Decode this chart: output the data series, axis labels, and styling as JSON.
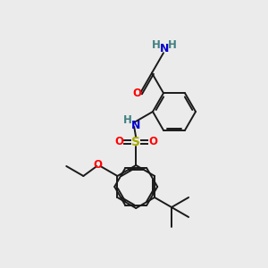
{
  "bg_color": "#ebebeb",
  "bond_color": "#1a1a1a",
  "colors": {
    "N": "#0000cc",
    "O": "#ff0000",
    "S": "#aaaa00",
    "H": "#408080",
    "C": "#1a1a1a"
  },
  "figsize": [
    3.0,
    3.0
  ],
  "dpi": 100,
  "lw": 1.4,
  "fs": 8.5,
  "r": 24
}
